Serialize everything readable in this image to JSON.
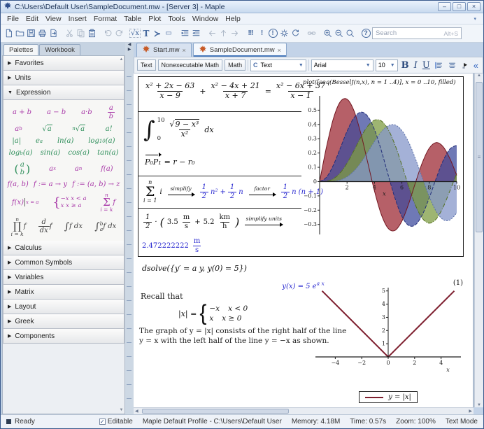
{
  "window": {
    "title": "C:\\Users\\Default User\\SampleDocument.mw - [Server 3] - Maple",
    "minimize": "–",
    "maximize": "□",
    "close": "×"
  },
  "glyphs": {
    "left": "◀",
    "right": "▶",
    "up": "▲",
    "down": "▼",
    "tri_collapsed": "▶",
    "tri_expanded": "▼",
    "grip": "≡",
    "caret": "▾",
    "check": "✓"
  },
  "menu": {
    "items": [
      "File",
      "Edit",
      "View",
      "Insert",
      "Format",
      "Table",
      "Plot",
      "Tools",
      "Window",
      "Help"
    ]
  },
  "toolbar": {
    "search_placeholder": "Search",
    "search_shortcut": "Alt+S",
    "icons": [
      {
        "name": "new-document-icon",
        "k": "new"
      },
      {
        "name": "open-icon",
        "k": "open"
      },
      {
        "name": "save-icon",
        "k": "save"
      },
      {
        "name": "print-icon",
        "k": "print"
      },
      {
        "name": "export-icon",
        "k": "export"
      },
      {
        "sep": true
      },
      {
        "name": "cut-icon",
        "k": "cut",
        "dis": true
      },
      {
        "name": "copy-icon",
        "k": "copy",
        "dis": true
      },
      {
        "name": "paste-icon",
        "k": "paste"
      },
      {
        "sep": true
      },
      {
        "name": "undo-icon",
        "k": "undo",
        "dis": true
      },
      {
        "name": "redo-icon",
        "k": "redo",
        "dis": true
      },
      {
        "sep": true
      },
      {
        "name": "insert-math-icon",
        "t": "√x",
        "cls": "tmath"
      },
      {
        "name": "insert-text-icon",
        "t": "T",
        "cls": "tT"
      },
      {
        "name": "insert-prompt-icon",
        "t": "≻",
        "cls": "tprompt"
      },
      {
        "name": "insert-section-icon",
        "t": "▭",
        "cls": "tsec"
      },
      {
        "sep": true
      },
      {
        "name": "indent-icon",
        "k": "indent"
      },
      {
        "name": "outdent-icon",
        "k": "outdent"
      },
      {
        "sep": true
      },
      {
        "name": "back-icon",
        "k": "back",
        "dis": true
      },
      {
        "name": "up-icon",
        "k": "up",
        "dis": true
      },
      {
        "name": "forward-icon",
        "k": "fwd",
        "dis": true
      },
      {
        "sep": true
      },
      {
        "name": "execute-all-icon",
        "t": "!!!",
        "cls": "texec"
      },
      {
        "name": "execute-icon",
        "t": "!",
        "cls": "texec"
      },
      {
        "name": "stop-icon",
        "t": "!",
        "cls": "circ"
      },
      {
        "name": "debug-icon",
        "k": "gear"
      },
      {
        "name": "restart-icon",
        "k": "restart"
      },
      {
        "sep": true
      },
      {
        "name": "hyperlink-icon",
        "k": "link",
        "dis": true
      },
      {
        "sep": true
      },
      {
        "name": "zoom-in-icon",
        "k": "zin"
      },
      {
        "name": "zoom-out-icon",
        "k": "zout"
      },
      {
        "name": "zoom-reset-icon",
        "k": "zreset"
      },
      {
        "sep": true
      },
      {
        "name": "help-icon",
        "t": "?",
        "cls": "circ"
      }
    ]
  },
  "palette": {
    "tabs": [
      {
        "label": "Palettes",
        "active": true
      },
      {
        "label": "Workbook",
        "active": false
      }
    ],
    "sections_top": [
      {
        "label": "Favorites"
      },
      {
        "label": "Units"
      }
    ],
    "expression_label": "Expression",
    "rows": [
      [
        {
          "t": "a + b",
          "c": "m"
        },
        {
          "t": "a − b",
          "c": "m"
        },
        {
          "t": "a·b",
          "c": "m"
        },
        {
          "kind": "frac",
          "n": "a",
          "d": "b",
          "c": "m"
        }
      ],
      [
        {
          "kind": "script",
          "b": "a",
          "sup": "b",
          "c": "m"
        },
        {
          "kind": "root",
          "op": "√",
          "r": "a",
          "c": "g"
        },
        {
          "kind": "root",
          "op": "√",
          "nth": "n",
          "r": "a",
          "c": "g"
        },
        {
          "t": "a!",
          "c": "g"
        }
      ],
      [
        {
          "t": "|a|",
          "c": "g"
        },
        {
          "kind": "script",
          "b": "e",
          "sup": "a",
          "c": "g"
        },
        {
          "t": "ln(a)",
          "c": "g"
        },
        {
          "kind": "script",
          "b": "log",
          "sub": "10",
          "t": "(a)",
          "c": "g"
        }
      ],
      [
        {
          "kind": "script",
          "b": "log",
          "sub": "b",
          "t": "(a)",
          "c": "g"
        },
        {
          "t": "sin(a)",
          "c": "g"
        },
        {
          "t": "cos(a)",
          "c": "g"
        },
        {
          "t": "tan(a)",
          "c": "g"
        }
      ],
      [
        {
          "kind": "binom",
          "n": "a",
          "d": "b",
          "c": "g"
        },
        {
          "kind": "script",
          "b": "a",
          "sub": "x",
          "c": "m"
        },
        {
          "kind": "script",
          "b": "a",
          "sub": "n",
          "c": "m"
        },
        {
          "t": "f(a)",
          "c": "m"
        }
      ],
      [
        {
          "t": "f(a, b)",
          "c": "m"
        },
        {
          "t": "f := a → y",
          "c": "m"
        },
        {
          "t": "f := (a, b) → z",
          "c": "m"
        }
      ],
      [
        {
          "kind": "eval",
          "t": "f(x)",
          "s": "x = a",
          "c": "m"
        },
        {
          "kind": "pw",
          "op": "{",
          "l1": "−x   x < a",
          "l2": "x   x ≥ a",
          "c": "m"
        },
        {
          "kind": "limop",
          "op": "Σ",
          "top": "n",
          "bot": "i = k",
          "after": "f",
          "c": "m"
        }
      ],
      [
        {
          "kind": "limop",
          "op": "∏",
          "top": "n",
          "bot": "i = k",
          "after": "f",
          "c": "k"
        },
        {
          "kind": "dfrac",
          "n": "d",
          "d": "dx",
          "after": "f",
          "c": "k"
        },
        {
          "kind": "intop",
          "op": "∫",
          "after": "f dx",
          "c": "k"
        },
        {
          "kind": "intop",
          "op": "∫",
          "top": "b",
          "bot": "a",
          "after": "f dx",
          "c": "k"
        }
      ]
    ],
    "sections_bottom": [
      {
        "label": "Calculus"
      },
      {
        "label": "Common Symbols"
      },
      {
        "label": "Variables"
      },
      {
        "label": "Matrix"
      },
      {
        "label": "Layout"
      },
      {
        "label": "Greek"
      },
      {
        "label": "Components"
      }
    ]
  },
  "doc_tabs": [
    {
      "label": "Start.mw",
      "close": "×",
      "active": false
    },
    {
      "label": "SampleDocument.mw",
      "close": "×",
      "active": true
    }
  ],
  "fmtbar": {
    "text_btn": "Text",
    "nonexec_btn": "Nonexecutable Math",
    "math_btn": "Math",
    "style_icon": "C",
    "style_value": "Text",
    "font_value": "Arial",
    "size_value": "10",
    "bold": "B",
    "italic": "I",
    "underline": "U",
    "collapse": "«"
  },
  "doc": {
    "plot_command": "plot([seq(BesselJ(n,x), n = 1 ..4)], x = 0 ..10, filled)",
    "expr1": {
      "n1": "x² + 2x − 63",
      "d1": "x − 9",
      "op": "+",
      "n2": "x² − 4x + 21",
      "d2": "x + 7",
      "eq": "=",
      "n3": "x² − 6x + 37",
      "d3": "x − 1"
    },
    "expr2": {
      "int": "∫",
      "hi": "10",
      "lo": "0",
      "sqrt": "√",
      "rad": "9 − x³",
      "den": "x²",
      "dx": "dx"
    },
    "expr3": {
      "vec": "P₀P₁",
      "rhs": "= r − r₀"
    },
    "expr4": {
      "sigma": "Σ",
      "top": "n",
      "bot": "i = 1",
      "body": "i",
      "lab1": "simplify",
      "f1n": "1",
      "f1d": "2",
      "t1": "n²",
      "plus": "+",
      "f2n": "1",
      "f2d": "2",
      "t2": "n",
      "lab2": "factor",
      "f3n": "1",
      "f3d": "2",
      "t3": "n (n + 1)"
    },
    "expr5": {
      "fn": "1",
      "fd": "2",
      "dot": "·",
      "lp": "(",
      "v1": "3.5",
      "u1n": "m",
      "u1d": "s",
      "plus": "+",
      "v2": "5.2",
      "u2n": "km",
      "u2d": "h",
      "rp": ")",
      "lab": "simplify units",
      "res": "2.472222222",
      "resn": "m",
      "resd": "s"
    },
    "dsolve": {
      "input": "dsolve({y′ = a y, y(0) = 5})",
      "out_pre": "y(x) = 5 e",
      "out_sup": "a x",
      "eqlabel": "(1)"
    },
    "recall": {
      "intro": "Recall that",
      "abs_lhs": "|x| =",
      "brace": "{",
      "p1l": "−x",
      "p1r": "x < 0",
      "p2l": "x",
      "p2r": "x ≥ 0",
      "para1": "The graph of y = |x| consists of the right half of the line",
      "para2": "y = x with the left half of the line y = −x as shown."
    }
  },
  "chart_data": [
    {
      "type": "area",
      "title": "plot([seq(BesselJ(n,x), n = 1 ..4)], x = 0 ..10, filled)",
      "xlabel": "x",
      "xlim": [
        0,
        10
      ],
      "ylim": [
        -0.37,
        0.6
      ],
      "xticks": [
        2,
        4,
        6,
        8,
        10
      ],
      "yticks": [
        -0.3,
        -0.2,
        -0.1,
        0,
        0.1,
        0.2,
        0.3,
        0.4,
        0.5
      ],
      "grid": false,
      "legend_position": "none",
      "x": [
        0,
        0.5,
        1,
        1.5,
        2,
        2.5,
        3,
        3.5,
        4,
        4.5,
        5,
        5.5,
        6,
        6.5,
        7,
        7.5,
        8,
        8.5,
        9,
        9.5,
        10
      ],
      "series": [
        {
          "name": "BesselJ(1,x)",
          "fill": "#9e2b36",
          "stroke": "#731721",
          "dash": "",
          "y": [
            0,
            0.2423,
            0.4401,
            0.5579,
            0.5767,
            0.4971,
            0.3391,
            0.1374,
            -0.066,
            -0.2311,
            -0.3276,
            -0.3414,
            -0.2767,
            -0.1538,
            -0.0047,
            0.1352,
            0.2346,
            0.2731,
            0.2453,
            0.1613,
            0.0435
          ]
        },
        {
          "name": "BesselJ(2,x)",
          "fill": "#3f4c9e",
          "stroke": "#232f7a",
          "dash": "5,2",
          "y": [
            0,
            0.0306,
            0.1149,
            0.2321,
            0.3528,
            0.4461,
            0.4861,
            0.4586,
            0.3641,
            0.2178,
            0.0466,
            -0.1173,
            -0.2429,
            -0.3074,
            -0.3014,
            -0.2303,
            -0.113,
            0.0223,
            0.1448,
            0.2279,
            0.2546
          ]
        },
        {
          "name": "BesselJ(3,x)",
          "fill": "#7d9c43",
          "stroke": "#55701f",
          "dash": "6,2,1,2",
          "y": [
            0,
            0.0026,
            0.0196,
            0.061,
            0.1289,
            0.2166,
            0.3091,
            0.3868,
            0.4302,
            0.4247,
            0.3648,
            0.2561,
            0.1148,
            -0.0353,
            -0.1676,
            -0.2581,
            -0.2911,
            -0.2626,
            -0.1809,
            -0.0653,
            0.0584
          ]
        },
        {
          "name": "BesselJ(4,x)",
          "fill": "#8597c9",
          "stroke": "#5a6fa8",
          "dash": "2,2",
          "y": [
            0,
            0.0002,
            0.0025,
            0.0118,
            0.034,
            0.0738,
            0.132,
            0.2044,
            0.2811,
            0.3484,
            0.3912,
            0.3967,
            0.3576,
            0.2749,
            0.1578,
            0.0238,
            -0.1054,
            -0.2077,
            -0.2655,
            -0.2691,
            -0.2196
          ]
        }
      ]
    },
    {
      "type": "line",
      "legend": "y = |x|",
      "xlabel": "x",
      "xlim": [
        -5.5,
        5.5
      ],
      "ylim": [
        -0.9,
        5.25
      ],
      "xticks": [
        -4,
        -2,
        0,
        2,
        4
      ],
      "yticks": [
        1,
        2,
        3,
        4,
        5
      ],
      "grid": false,
      "legend_position": "bottom",
      "x": [
        -5,
        0,
        5
      ],
      "series": [
        {
          "name": "y = |x|",
          "fill": "none",
          "stroke": "#7e1f2f",
          "w": 2,
          "dash": "",
          "y": [
            5,
            0,
            5
          ]
        }
      ]
    }
  ],
  "status": {
    "ready": "Ready",
    "editable": "Editable",
    "profile": "Maple Default Profile - C:\\Users\\Default User",
    "memory": "Memory: 4.18M",
    "time": "Time: 0.57s",
    "zoom": "Zoom: 100%",
    "mode": "Text Mode"
  }
}
